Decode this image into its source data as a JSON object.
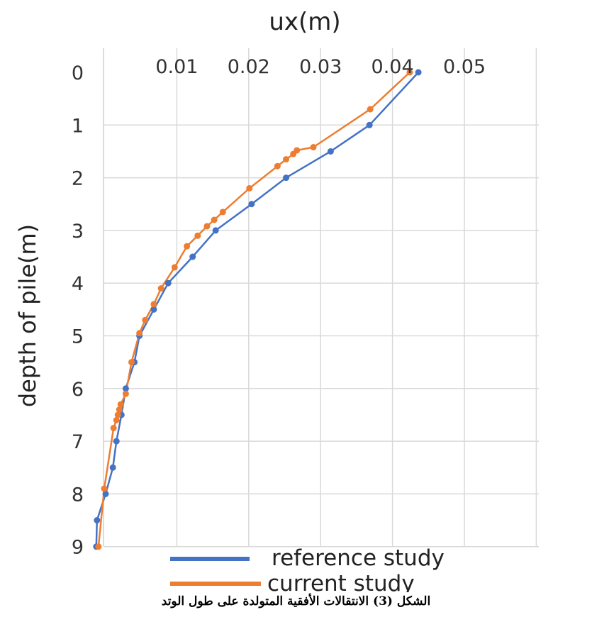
{
  "chart_data": {
    "type": "line",
    "xlabel": "ux(m)",
    "ylabel": "depth of pile(m)",
    "xlim": [
      0,
      0.05
    ],
    "ylim": [
      0,
      9
    ],
    "x_ticks": [
      "0.01",
      "0.02",
      "0.03",
      "0.04",
      "0.05"
    ],
    "y_ticks": [
      "0",
      "1",
      "2",
      "3",
      "4",
      "5",
      "6",
      "7",
      "8",
      "9"
    ],
    "grid": true,
    "x_axis_position": "top",
    "y_axis_inverted": true,
    "legend_position": "bottom-right",
    "series": [
      {
        "name": "reference study",
        "color": "#4472c4",
        "points": [
          {
            "x": 0.0436,
            "y": 0
          },
          {
            "x": 0.0368,
            "y": 1
          },
          {
            "x": 0.0314,
            "y": 1.5
          },
          {
            "x": 0.0252,
            "y": 2
          },
          {
            "x": 0.0204,
            "y": 2.5
          },
          {
            "x": 0.0154,
            "y": 3
          },
          {
            "x": 0.0122,
            "y": 3.5
          },
          {
            "x": 0.0088,
            "y": 4
          },
          {
            "x": 0.0068,
            "y": 4.5
          },
          {
            "x": 0.0048,
            "y": 5
          },
          {
            "x": 0.0041,
            "y": 5.5
          },
          {
            "x": 0.0029,
            "y": 6
          },
          {
            "x": 0.0023,
            "y": 6.5
          },
          {
            "x": 0.0016,
            "y": 7
          },
          {
            "x": 0.0011,
            "y": 7.5
          },
          {
            "x": 0.0001,
            "y": 8
          },
          {
            "x": -0.0011,
            "y": 8.5
          },
          {
            "x": -0.0012,
            "y": 9
          }
        ]
      },
      {
        "name": "current study",
        "color": "#ed7d31",
        "points": [
          {
            "x": 0.0424,
            "y": 0
          },
          {
            "x": 0.0369,
            "y": 0.7
          },
          {
            "x": 0.029,
            "y": 1.42
          },
          {
            "x": 0.0267,
            "y": 1.48
          },
          {
            "x": 0.0262,
            "y": 1.55
          },
          {
            "x": 0.0252,
            "y": 1.65
          },
          {
            "x": 0.024,
            "y": 1.78
          },
          {
            "x": 0.0201,
            "y": 2.2
          },
          {
            "x": 0.0164,
            "y": 2.65
          },
          {
            "x": 0.0152,
            "y": 2.8
          },
          {
            "x": 0.0142,
            "y": 2.92
          },
          {
            "x": 0.0129,
            "y": 3.1
          },
          {
            "x": 0.0114,
            "y": 3.3
          },
          {
            "x": 0.0097,
            "y": 3.7
          },
          {
            "x": 0.0078,
            "y": 4.1
          },
          {
            "x": 0.0068,
            "y": 4.4
          },
          {
            "x": 0.0056,
            "y": 4.7
          },
          {
            "x": 0.0048,
            "y": 4.95
          },
          {
            "x": 0.0037,
            "y": 5.5
          },
          {
            "x": 0.0029,
            "y": 6.1
          },
          {
            "x": 0.0022,
            "y": 6.3
          },
          {
            "x": 0.002,
            "y": 6.4
          },
          {
            "x": 0.0018,
            "y": 6.5
          },
          {
            "x": 0.0016,
            "y": 6.6
          },
          {
            "x": 0.0012,
            "y": 6.75
          },
          {
            "x": -0.0001,
            "y": 7.9
          },
          {
            "x": -0.0009,
            "y": 9
          }
        ]
      }
    ]
  },
  "caption": "الشكل (3) الانتقالات الأفقية المتولدة على طول الوتد"
}
